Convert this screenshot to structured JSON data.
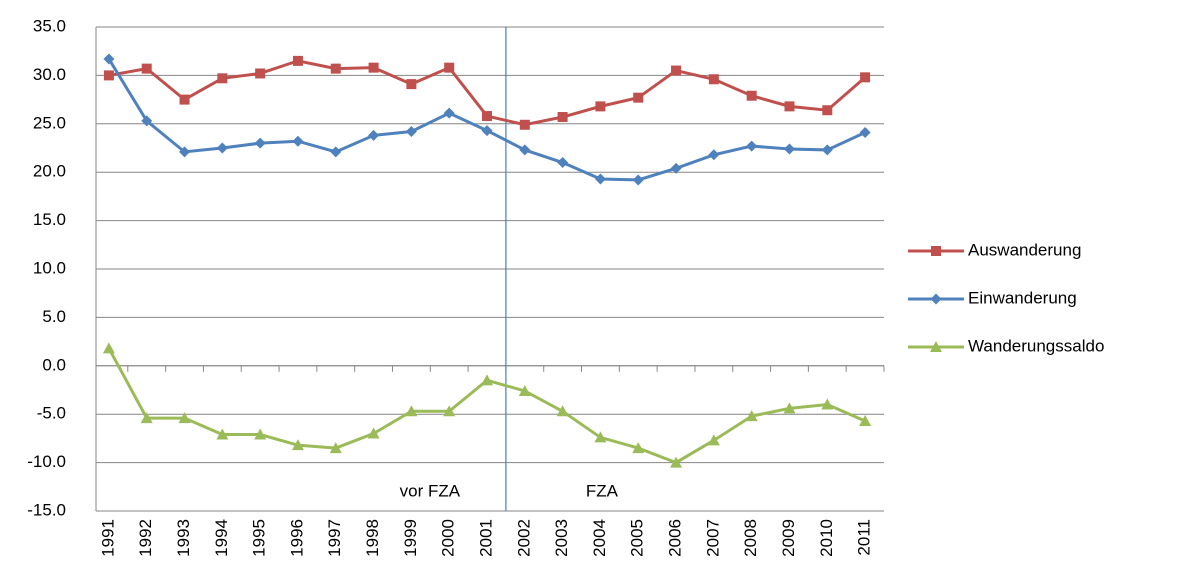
{
  "chart_data": {
    "type": "line",
    "categories": [
      "1991",
      "1992",
      "1993",
      "1994",
      "1995",
      "1996",
      "1997",
      "1998",
      "1999",
      "2000",
      "2001",
      "2002",
      "2003",
      "2004",
      "2005",
      "2006",
      "2007",
      "2008",
      "2009",
      "2010",
      "2011"
    ],
    "series": [
      {
        "name": "Auswanderung",
        "color": "#c0504d",
        "marker": "square",
        "values": [
          30.0,
          30.7,
          27.5,
          29.7,
          30.2,
          31.5,
          30.7,
          30.8,
          29.1,
          30.8,
          25.8,
          24.9,
          25.7,
          26.8,
          27.7,
          30.5,
          29.6,
          27.9,
          26.8,
          26.4,
          29.8
        ]
      },
      {
        "name": "Einwanderung",
        "color": "#4f81bd",
        "marker": "diamond",
        "values": [
          31.7,
          25.3,
          22.1,
          22.5,
          23.0,
          23.2,
          22.1,
          23.8,
          24.2,
          26.1,
          24.3,
          22.3,
          21.0,
          19.3,
          19.2,
          20.4,
          21.8,
          22.7,
          22.4,
          22.3,
          24.1
        ]
      },
      {
        "name": "Wanderungssaldo",
        "color": "#9bbb59",
        "marker": "triangle",
        "values": [
          1.8,
          -5.4,
          -5.4,
          -7.1,
          -7.1,
          -8.2,
          -8.5,
          -7.0,
          -4.7,
          -4.7,
          -1.5,
          -2.6,
          -4.7,
          -7.4,
          -8.5,
          -10.0,
          -7.7,
          -5.2,
          -4.4,
          -4.0,
          -5.7
        ]
      }
    ],
    "ylim": [
      -15,
      35
    ],
    "yticks": [
      {
        "value": -15,
        "label": "-15.0"
      },
      {
        "value": -10,
        "label": "-10.0"
      },
      {
        "value": -5,
        "label": "-5.0"
      },
      {
        "value": 0,
        "label": "0.0"
      },
      {
        "value": 5,
        "label": "5.0"
      },
      {
        "value": 10,
        "label": "10.0"
      },
      {
        "value": 15,
        "label": "15.0"
      },
      {
        "value": 20,
        "label": "20.0"
      },
      {
        "value": 25,
        "label": "25.0"
      },
      {
        "value": 30,
        "label": "30.0"
      },
      {
        "value": 35,
        "label": "35.0"
      }
    ],
    "grid": true,
    "legend": "right",
    "annotations": [
      "vor FZA",
      "FZA"
    ]
  }
}
